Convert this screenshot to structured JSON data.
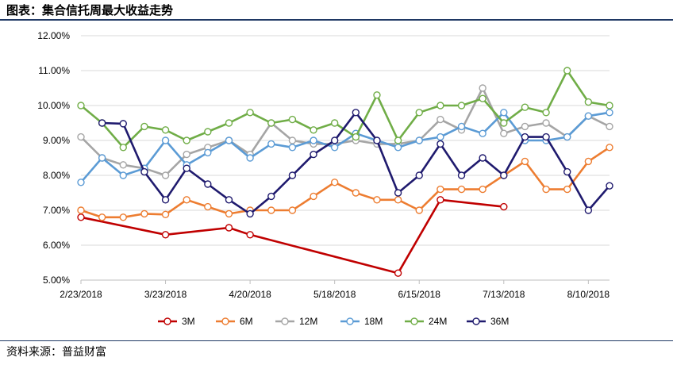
{
  "figure": {
    "title": "图表：集合信托周最大收益走势",
    "source": "资料来源：普益财富"
  },
  "chart_data": {
    "type": "line",
    "title": "",
    "xlabel": "",
    "ylabel": "",
    "ylim": [
      5.0,
      12.0
    ],
    "y_ticks": [
      "5.00%",
      "6.00%",
      "7.00%",
      "8.00%",
      "9.00%",
      "10.00%",
      "11.00%",
      "12.00%"
    ],
    "x_ticks": [
      "2/23/2018",
      "3/23/2018",
      "4/20/2018",
      "5/18/2018",
      "6/15/2018",
      "7/13/2018",
      "8/10/2018"
    ],
    "x_dates": [
      "2018-02-23",
      "2018-03-02",
      "2018-03-09",
      "2018-03-16",
      "2018-03-23",
      "2018-03-30",
      "2018-04-06",
      "2018-04-13",
      "2018-04-20",
      "2018-04-27",
      "2018-05-04",
      "2018-05-11",
      "2018-05-18",
      "2018-05-25",
      "2018-06-01",
      "2018-06-08",
      "2018-06-15",
      "2018-06-22",
      "2018-06-29",
      "2018-07-06",
      "2018-07-13",
      "2018-07-20",
      "2018-07-27",
      "2018-08-03",
      "2018-08-10",
      "2018-08-17"
    ],
    "grid": "horizontal",
    "legend": "bottom",
    "series": [
      {
        "name": "3M",
        "color": "#c00000",
        "points": [
          [
            "2018-02-23",
            6.8
          ],
          [
            "2018-03-23",
            6.3
          ],
          [
            "2018-04-13",
            6.5
          ],
          [
            "2018-04-20",
            6.3
          ],
          [
            "2018-06-08",
            5.2
          ],
          [
            "2018-06-22",
            7.3
          ],
          [
            "2018-07-13",
            7.1
          ]
        ]
      },
      {
        "name": "6M",
        "color": "#ed7d31",
        "values": [
          7.0,
          6.8,
          6.8,
          6.9,
          6.88,
          7.3,
          7.1,
          6.9,
          7.0,
          7.0,
          7.0,
          7.4,
          7.8,
          7.5,
          7.3,
          7.3,
          7.0,
          7.6,
          7.6,
          7.6,
          8.0,
          8.4,
          7.6,
          7.6,
          8.4,
          8.8
        ]
      },
      {
        "name": "12M",
        "color": "#a5a5a5",
        "values": [
          9.1,
          8.5,
          8.3,
          8.2,
          8.0,
          8.6,
          8.8,
          9.0,
          8.6,
          9.5,
          9.0,
          8.9,
          8.9,
          9.0,
          8.9,
          8.9,
          9.0,
          9.6,
          9.3,
          10.5,
          9.2,
          9.4,
          9.5,
          9.1,
          9.7,
          9.4
        ]
      },
      {
        "name": "18M",
        "color": "#5b9bd5",
        "values": [
          7.8,
          8.5,
          8.0,
          8.2,
          9.0,
          8.3,
          8.65,
          9.0,
          8.5,
          8.9,
          8.8,
          9.0,
          8.8,
          9.2,
          9.0,
          8.8,
          9.0,
          9.1,
          9.4,
          9.2,
          9.8,
          9.0,
          9.0,
          9.1,
          9.7,
          9.8
        ]
      },
      {
        "name": "24M",
        "color": "#70ad47",
        "values": [
          10.0,
          9.5,
          8.8,
          9.4,
          9.3,
          9.0,
          9.25,
          9.5,
          9.8,
          9.5,
          9.6,
          9.3,
          9.5,
          9.1,
          10.3,
          9.0,
          9.8,
          10.0,
          10.0,
          10.2,
          9.5,
          9.95,
          9.8,
          11.0,
          10.1,
          10.0
        ]
      },
      {
        "name": "36M",
        "color": "#1f1a6e",
        "values": [
          null,
          9.5,
          9.48,
          8.1,
          7.3,
          8.2,
          7.75,
          7.3,
          6.9,
          7.4,
          8.0,
          8.6,
          9.0,
          9.8,
          9.0,
          7.5,
          8.0,
          8.9,
          8.0,
          8.5,
          8.0,
          9.1,
          9.1,
          8.1,
          7.0,
          7.7
        ]
      }
    ]
  }
}
